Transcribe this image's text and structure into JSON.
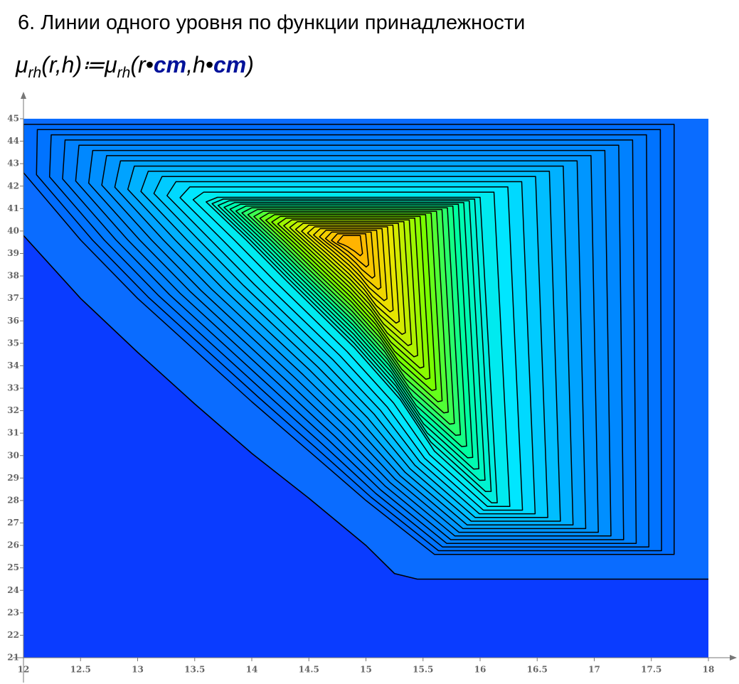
{
  "chart_data": {
    "type": "contour",
    "title": "6. Линии одного уровня по функции принадлежности",
    "formula": {
      "lhs_symbol": "μ",
      "lhs_sub": "rh",
      "lhs_args": "(r,h)",
      "op": "≔",
      "rhs_symbol": "μ",
      "rhs_sub": "rh",
      "rhs_open": "(r•",
      "unit1": "cm",
      "sep": ",h•",
      "unit2": "cm",
      "rhs_close": ")"
    },
    "xlim": [
      12,
      18
    ],
    "ylim": [
      21,
      45
    ],
    "xticks": [
      12,
      12.5,
      13,
      13.5,
      14,
      14.5,
      15,
      15.5,
      16,
      16.5,
      17,
      17.5,
      18
    ],
    "yticks": [
      21,
      22,
      23,
      24,
      25,
      26,
      27,
      28,
      29,
      30,
      31,
      32,
      33,
      34,
      35,
      36,
      37,
      38,
      39,
      40,
      41,
      42,
      43,
      44,
      45
    ]
  }
}
